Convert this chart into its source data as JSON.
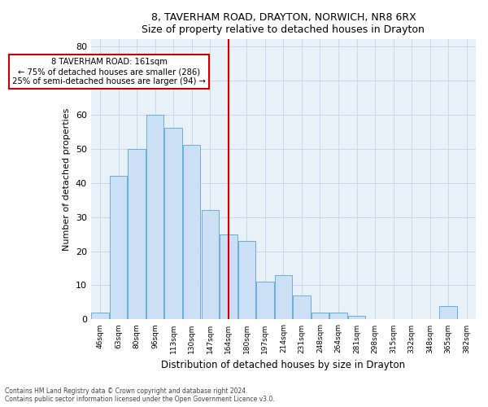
{
  "title1": "8, TAVERHAM ROAD, DRAYTON, NORWICH, NR8 6RX",
  "title2": "Size of property relative to detached houses in Drayton",
  "xlabel": "Distribution of detached houses by size in Drayton",
  "ylabel": "Number of detached properties",
  "categories": [
    "46sqm",
    "63sqm",
    "80sqm",
    "96sqm",
    "113sqm",
    "130sqm",
    "147sqm",
    "164sqm",
    "180sqm",
    "197sqm",
    "214sqm",
    "231sqm",
    "248sqm",
    "264sqm",
    "281sqm",
    "298sqm",
    "315sqm",
    "332sqm",
    "348sqm",
    "365sqm",
    "382sqm"
  ],
  "values": [
    2,
    42,
    50,
    60,
    56,
    51,
    32,
    25,
    23,
    11,
    13,
    7,
    2,
    2,
    1,
    0,
    0,
    0,
    0,
    4,
    0
  ],
  "bar_color": "#cce0f5",
  "bar_edge_color": "#6aaed6",
  "vline_x_index": 7,
  "vline_color": "#cc0000",
  "annotation_line1": "8 TAVERHAM ROAD: 161sqm",
  "annotation_line2": "← 75% of detached houses are smaller (286)",
  "annotation_line3": "25% of semi-detached houses are larger (94) →",
  "annotation_box_color": "#cc0000",
  "ylim": [
    0,
    82
  ],
  "yticks": [
    0,
    10,
    20,
    30,
    40,
    50,
    60,
    70,
    80
  ],
  "grid_color": "#c8d8e8",
  "background_color": "#e8f0f8",
  "footer1": "Contains HM Land Registry data © Crown copyright and database right 2024.",
  "footer2": "Contains public sector information licensed under the Open Government Licence v3.0."
}
